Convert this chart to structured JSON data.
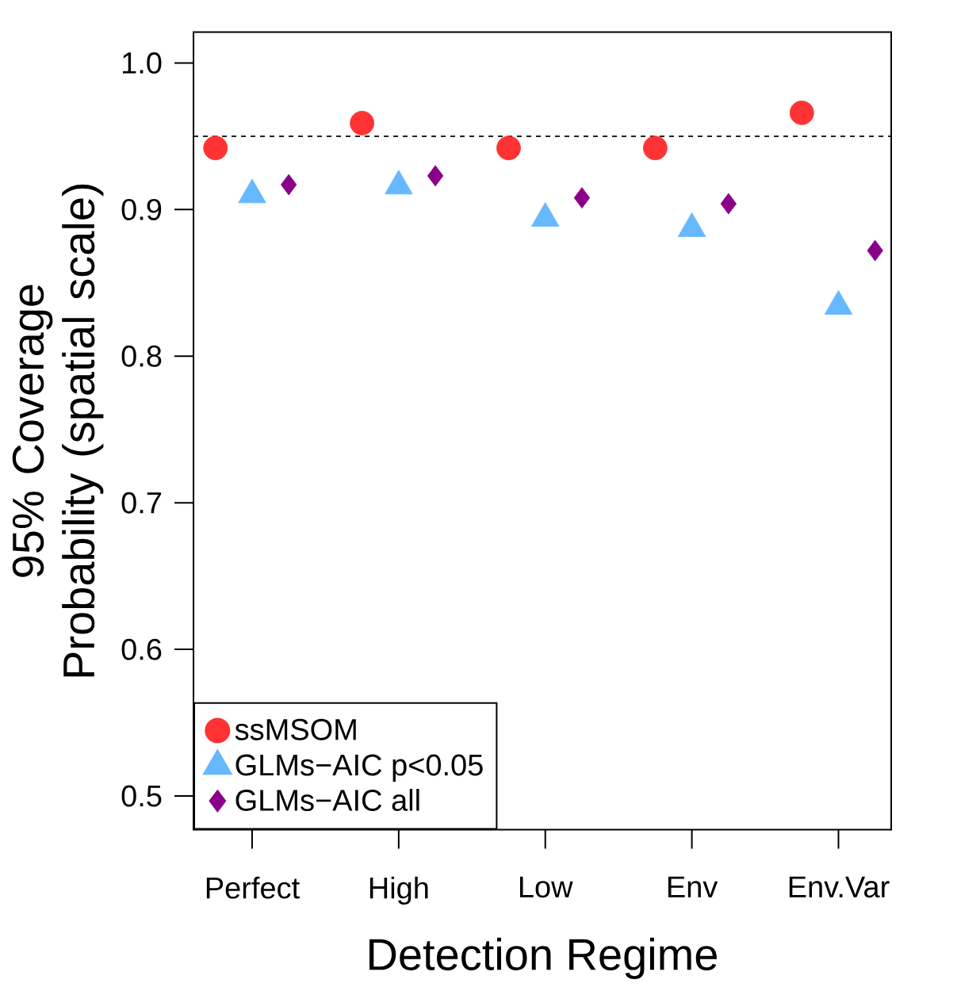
{
  "chart_data": {
    "type": "scatter",
    "xlabel": "Detection Regime",
    "ylabel": "95% Coverage Probability (spatial scale)",
    "categories": [
      "Perfect",
      "High",
      "Low",
      "Env",
      "Env.Var"
    ],
    "series": [
      {
        "name": "ssMSOM",
        "color": "#ff3333",
        "marker": "circle",
        "values": [
          0.942,
          0.959,
          0.942,
          0.942,
          0.966
        ]
      },
      {
        "name": "GLMs−AIC p<0.05",
        "color": "#66b8ff",
        "marker": "triangle",
        "values": [
          0.91,
          0.916,
          0.894,
          0.887,
          0.834
        ]
      },
      {
        "name": "GLMs−AIC all",
        "color": "#8b008b",
        "marker": "diamond",
        "values": [
          0.917,
          0.923,
          0.908,
          0.904,
          0.872
        ]
      }
    ],
    "ylim": [
      0.477,
      1.021
    ],
    "yticks": [
      0.5,
      0.6,
      0.7,
      0.8,
      0.9,
      {
        "value": 1.0,
        "label": "1.0"
      }
    ],
    "ref_lines": [
      {
        "axis": "y",
        "value": 0.95,
        "line_style": "dashed"
      }
    ],
    "legend": "bottom left",
    "grid": false
  }
}
